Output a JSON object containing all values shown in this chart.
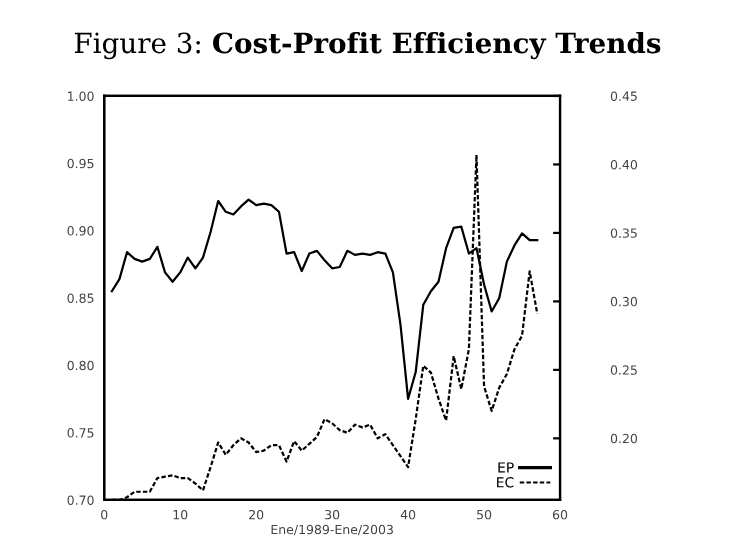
{
  "chart_data": {
    "type": "line",
    "title": "Figure 3: Cost-Profit Efficiency Trends",
    "xlabel": "Ene/1989-Ene/2003",
    "x": [
      1,
      2,
      3,
      4,
      5,
      6,
      7,
      8,
      9,
      10,
      11,
      12,
      13,
      14,
      15,
      16,
      17,
      18,
      19,
      20,
      21,
      22,
      23,
      24,
      25,
      26,
      27,
      28,
      29,
      30,
      31,
      32,
      33,
      34,
      35,
      36,
      37,
      38,
      39,
      40,
      41,
      42,
      43,
      44,
      45,
      46,
      47,
      48,
      49,
      50,
      51,
      52,
      53,
      54,
      55,
      56,
      57
    ],
    "series": [
      {
        "name": "EP",
        "color": "#000000",
        "line_style": "solid",
        "values": [
          0.855,
          0.864,
          0.884,
          0.879,
          0.877,
          0.879,
          0.888,
          0.869,
          0.862,
          0.869,
          0.88,
          0.872,
          0.88,
          0.899,
          0.922,
          0.914,
          0.912,
          0.918,
          0.923,
          0.919,
          0.92,
          0.919,
          0.914,
          0.883,
          0.884,
          0.87,
          0.883,
          0.885,
          0.878,
          0.872,
          0.873,
          0.885,
          0.882,
          0.883,
          0.882,
          0.884,
          0.883,
          0.869,
          0.83,
          0.775,
          0.795,
          0.845,
          0.855,
          0.862,
          0.887,
          0.902,
          0.903,
          0.883,
          0.887,
          0.86,
          0.84,
          0.85,
          0.877,
          0.889,
          0.898,
          0.893,
          0.893
        ]
      },
      {
        "name": "EC",
        "color": "#000000",
        "line_style": "dashed",
        "axis": "y2",
        "values": [
          0.155,
          0.155,
          0.157,
          0.161,
          0.161,
          0.161,
          0.171,
          0.172,
          0.173,
          0.171,
          0.171,
          0.167,
          0.162,
          0.179,
          0.197,
          0.188,
          0.195,
          0.2,
          0.197,
          0.19,
          0.191,
          0.195,
          0.195,
          0.183,
          0.198,
          0.191,
          0.196,
          0.201,
          0.214,
          0.211,
          0.206,
          0.204,
          0.21,
          0.208,
          0.21,
          0.2,
          0.203,
          0.195,
          0.187,
          0.179,
          0.214,
          0.253,
          0.248,
          0.229,
          0.213,
          0.26,
          0.236,
          0.265,
          0.407,
          0.238,
          0.22,
          0.237,
          0.247,
          0.265,
          0.275,
          0.322,
          0.291
        ]
      }
    ],
    "xlim": [
      0,
      60
    ],
    "xticks": [
      0,
      10,
      20,
      30,
      40,
      50,
      60
    ],
    "ylim": [
      0.7,
      1.0
    ],
    "yticks": [
      {
        "value": 0.7,
        "label": "0.70"
      },
      {
        "value": 0.75,
        "label": "0.75"
      },
      {
        "value": 0.8,
        "label": "0.80"
      },
      {
        "value": 0.85,
        "label": "0.85"
      },
      {
        "value": 0.9,
        "label": "0.90"
      },
      {
        "value": 0.95,
        "label": "0.95"
      },
      {
        "value": 1.0,
        "label": "1.00"
      }
    ],
    "y2lim": [
      0.155,
      0.45
    ],
    "y2ticks": [
      {
        "value": 0.2,
        "label": "0.20"
      },
      {
        "value": 0.25,
        "label": "0.25"
      },
      {
        "value": 0.3,
        "label": "0.30"
      },
      {
        "value": 0.35,
        "label": "0.35"
      },
      {
        "value": 0.4,
        "label": "0.40"
      },
      {
        "value": 0.45,
        "label": "0.45"
      }
    ],
    "grid": false,
    "legend": "bottom right",
    "marker": "none"
  }
}
